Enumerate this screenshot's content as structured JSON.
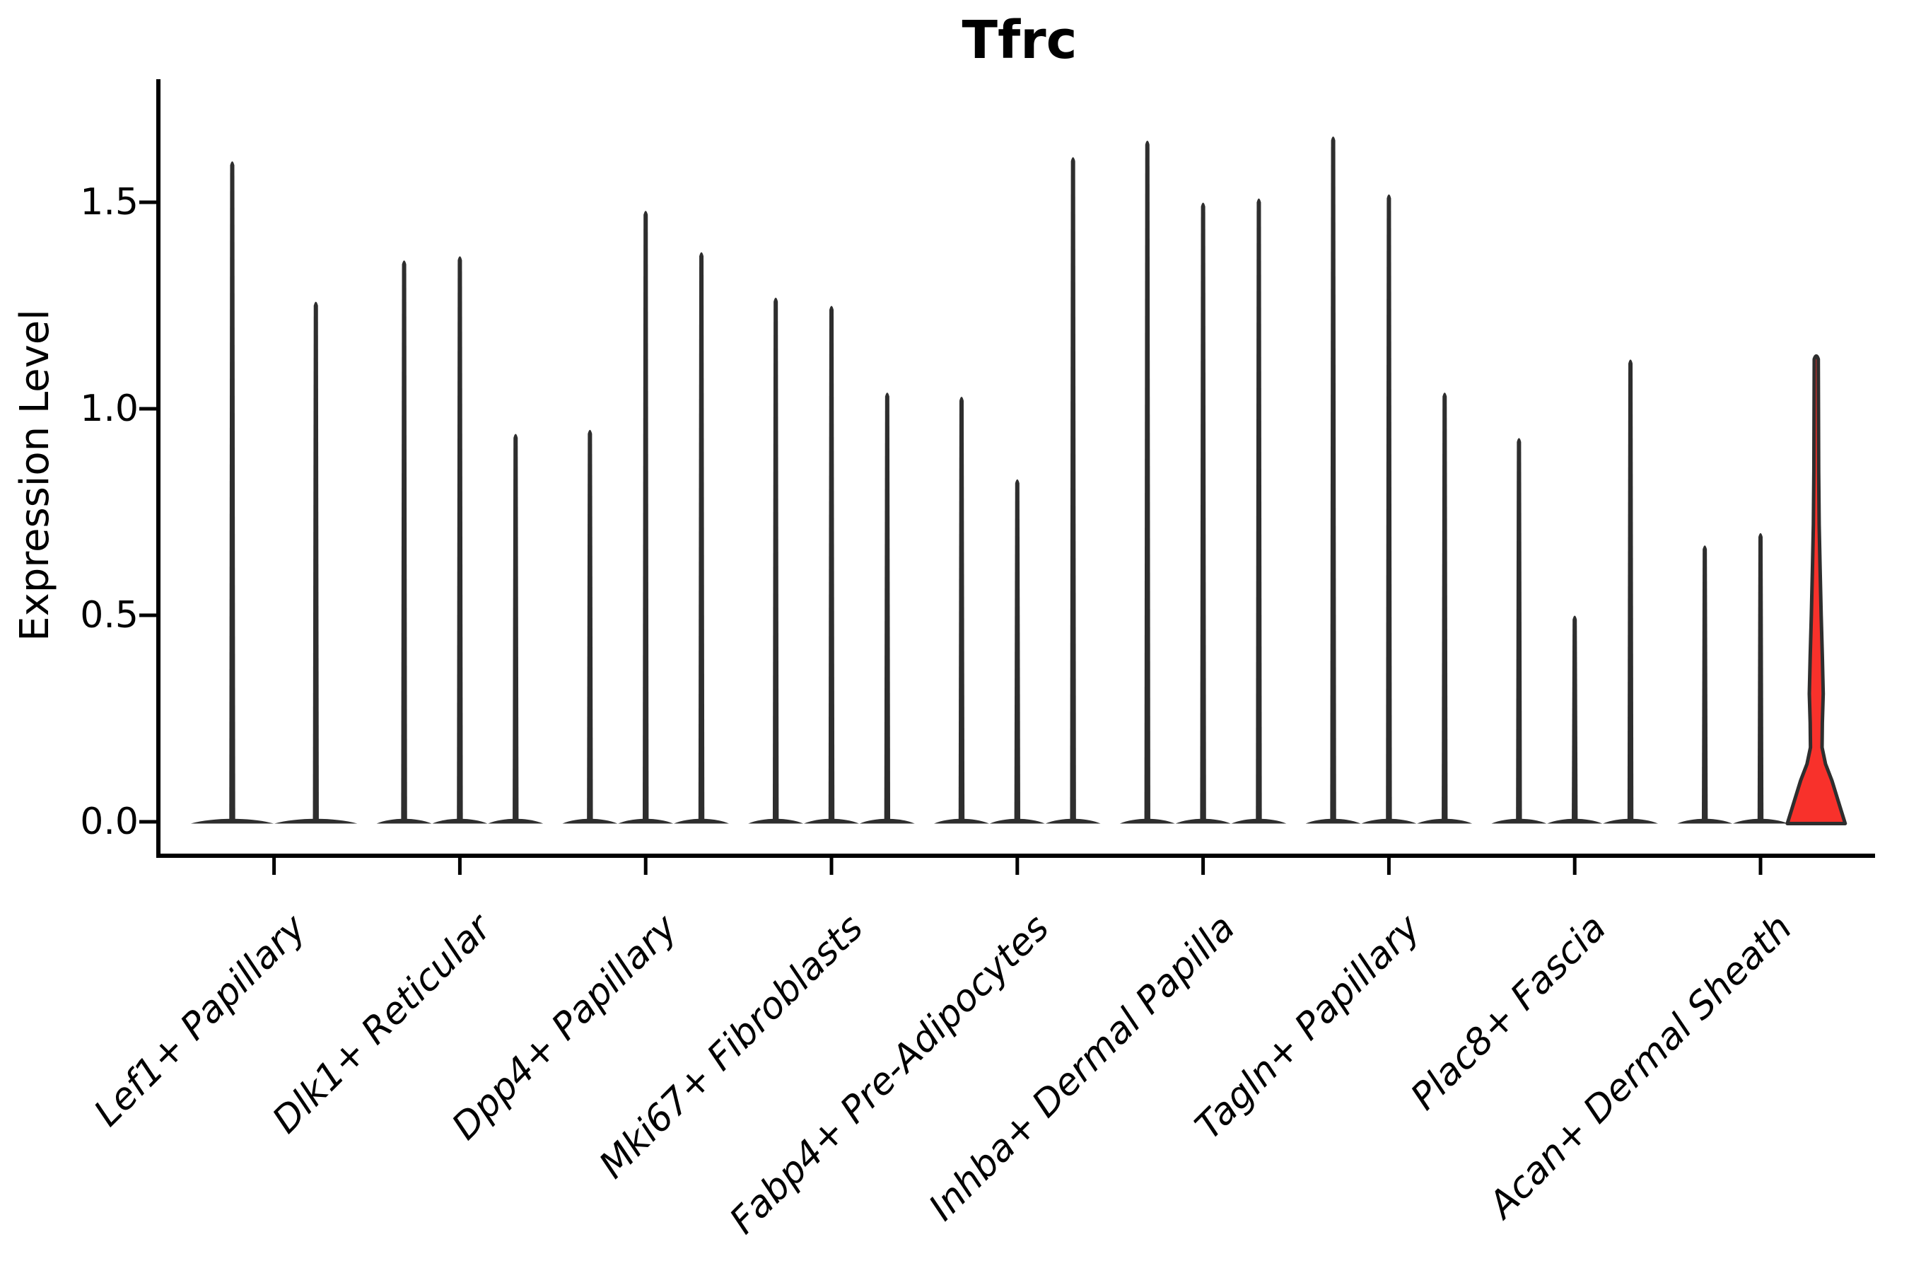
{
  "page": {
    "background": "#ffffff"
  },
  "chart_data": {
    "type": "violin",
    "title": "Tfrc",
    "ylabel": "Expression Level",
    "xlabel": "",
    "ylim": [
      0,
      1.72
    ],
    "grid": false,
    "legend": null,
    "yticks": [
      {
        "value": 0.0,
        "label": "0.0"
      },
      {
        "value": 0.5,
        "label": "0.5"
      },
      {
        "value": 1.0,
        "label": "1.0"
      },
      {
        "value": 1.5,
        "label": "1.5"
      }
    ],
    "categories": [
      "Lef1+ Papillary",
      "Dlk1+ Reticular",
      "Dpp4+ Papillary",
      "Mki67+ Fibroblasts",
      "Fabp4+ Pre-Adipocytes",
      "Inhba+ Dermal Papilla",
      "Tagln+ Papillary",
      "Plac8+ Fascia",
      "Acan+ Dermal Sheath"
    ],
    "groups": [
      {
        "label": "Lef1+ Papillary",
        "violin_maxima": [
          1.6,
          1.26
        ],
        "highlighted_index": null
      },
      {
        "label": "Dlk1+ Reticular",
        "violin_maxima": [
          1.36,
          1.37,
          0.94
        ],
        "highlighted_index": null
      },
      {
        "label": "Dpp4+ Papillary",
        "violin_maxima": [
          0.95,
          1.48,
          1.38
        ],
        "highlighted_index": null
      },
      {
        "label": "Mki67+ Fibroblasts",
        "violin_maxima": [
          1.27,
          1.25,
          1.04
        ],
        "highlighted_index": null
      },
      {
        "label": "Fabp4+ Pre-Adipocytes",
        "violin_maxima": [
          1.03,
          0.83,
          1.61
        ],
        "highlighted_index": null
      },
      {
        "label": "Inhba+ Dermal Papilla",
        "violin_maxima": [
          1.65,
          1.5,
          1.51
        ],
        "highlighted_index": null
      },
      {
        "label": "Tagln+ Papillary",
        "violin_maxima": [
          1.66,
          1.52,
          1.04
        ],
        "highlighted_index": null
      },
      {
        "label": "Plac8+ Fascia",
        "violin_maxima": [
          0.93,
          0.5,
          1.12
        ],
        "highlighted_index": null
      },
      {
        "label": "Acan+ Dermal Sheath",
        "violin_maxima": [
          0.67,
          0.7,
          1.12
        ],
        "highlighted_index": 2
      }
    ],
    "highlight_profile": [
      [
        0.0,
        1.0
      ],
      [
        0.05,
        0.76
      ],
      [
        0.1,
        0.54
      ],
      [
        0.14,
        0.32
      ],
      [
        0.18,
        0.2
      ],
      [
        0.24,
        0.21
      ],
      [
        0.31,
        0.24
      ],
      [
        0.4,
        0.21
      ],
      [
        0.5,
        0.17
      ],
      [
        0.62,
        0.13
      ],
      [
        0.72,
        0.1
      ],
      [
        0.85,
        0.083
      ],
      [
        1.0,
        0.076
      ],
      [
        1.12,
        0.07
      ]
    ],
    "colors": {
      "violin": "#2e2e2e",
      "highlight_fill": "#f8312b",
      "axis": "#000000",
      "background": "#ffffff"
    }
  }
}
